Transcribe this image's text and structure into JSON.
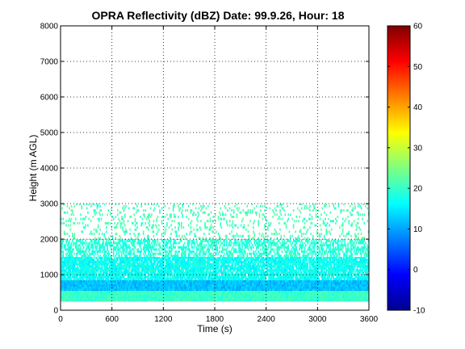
{
  "chart_data": {
    "type": "heatmap",
    "title": "OPRA Reflectivity (dBZ)  Date: 99.9.26, Hour: 18",
    "xlabel": "Time (s)",
    "ylabel": "Height (m AGL)",
    "xlim": [
      0,
      3600
    ],
    "ylim": [
      0,
      8000
    ],
    "x_ticks": [
      "0",
      "600",
      "1200",
      "1800",
      "2400",
      "3000",
      "3600"
    ],
    "y_ticks": [
      "0",
      "1000",
      "2000",
      "3000",
      "4000",
      "5000",
      "6000",
      "7000",
      "8000"
    ],
    "grid": true,
    "colorbar": {
      "min": -10,
      "max": 60,
      "ticks": [
        "-10",
        "0",
        "10",
        "20",
        "30",
        "40",
        "50",
        "60"
      ],
      "colormap": "jet"
    },
    "layers": [
      {
        "height_range_m": [
          250,
          550
        ],
        "dbz": 20,
        "coverage": "continuous"
      },
      {
        "height_range_m": [
          550,
          850
        ],
        "dbz": 12,
        "coverage": "continuous"
      },
      {
        "height_range_m": [
          850,
          1500
        ],
        "dbz": 17,
        "coverage": "mostly continuous"
      },
      {
        "height_range_m": [
          1500,
          2000
        ],
        "dbz": 19,
        "coverage": "intermittent"
      },
      {
        "height_range_m": [
          2000,
          3000
        ],
        "dbz": 21,
        "coverage": "sparse"
      }
    ]
  }
}
